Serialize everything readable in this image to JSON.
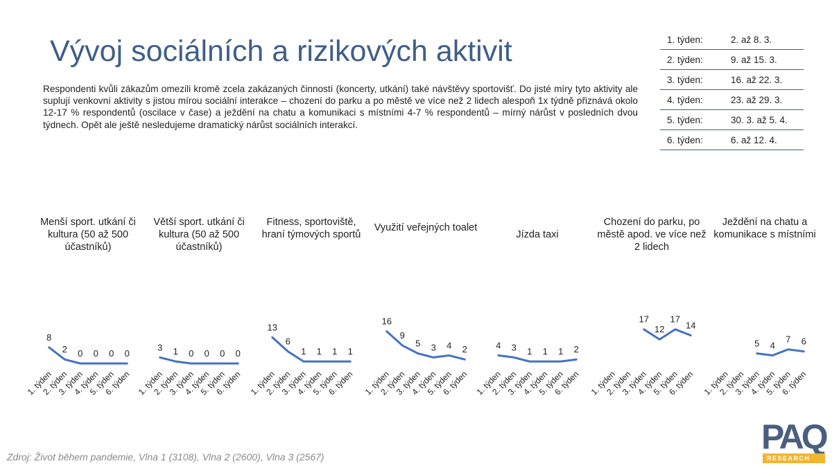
{
  "header": {
    "title": "Vývoj sociálních a rizikových aktivit",
    "description": "Respondenti kvůli zákazům omezili kromě zcela zakázaných činností (koncerty, utkání) také návštěvy sportovišť. Do jisté míry tyto aktivity ale suplují venkovní aktivity s jistou mírou sociální interakce – chození do parku a po městě ve více než 2 lidech alespoň 1x týdně přiznává okolo 12-17 % respondentů (oscilace v čase) a ježdění na chatu a komunikaci s místními 4-7 % respondentů – mírný nárůst v posledních dvou týdnech. Opět ale ještě nesledujeme dramatický nárůst sociálních interakcí."
  },
  "weeks_table": [
    {
      "week": "1. týden:",
      "dates": "2. až 8. 3."
    },
    {
      "week": "2. týden:",
      "dates": "9. až 15. 3."
    },
    {
      "week": "3. týden:",
      "dates": "16. až 22. 3."
    },
    {
      "week": "4. týden:",
      "dates": "23. až 29. 3."
    },
    {
      "week": "5. týden:",
      "dates": "30. 3. až 5. 4."
    },
    {
      "week": "6. týden:",
      "dates": "6. až 12. 4."
    }
  ],
  "source": "Zdroj: Život během pandemie, Vlna 1 (3108), Vlna 2 (2600), Vlna 3 (2567)",
  "logo": {
    "text": "PAQ",
    "subtext": "RESEARCH"
  },
  "colors": {
    "accent": "#3f5f87",
    "line": "#4472c4",
    "logo_bar": "#f2b530"
  },
  "chart_data": [
    {
      "type": "line",
      "title": "Menší sport. utkání či kultura (50 až 500 účastníků)",
      "categories": [
        "1. týden",
        "2. týden",
        "3. týden",
        "4. týden",
        "5. týden",
        "6. týden"
      ],
      "values": [
        8,
        2,
        0,
        0,
        0,
        0
      ]
    },
    {
      "type": "line",
      "title": "Větší sport. utkání či kultura (50 až 500 účastníků)",
      "categories": [
        "1. týden",
        "2. týden",
        "3. týden",
        "4. týden",
        "5. týden",
        "6. týden"
      ],
      "values": [
        3,
        1,
        0,
        0,
        0,
        0
      ]
    },
    {
      "type": "line",
      "title": "Fitness, sportoviště, hraní týmových sportů",
      "categories": [
        "1. týden",
        "2. týden",
        "3. týden",
        "4. týden",
        "5. týden",
        "6. týden"
      ],
      "values": [
        13,
        6,
        1,
        1,
        1,
        1
      ]
    },
    {
      "type": "line",
      "title": "Využití veřejných toalet",
      "categories": [
        "1. týden",
        "2. týden",
        "3. týden",
        "4. týden",
        "5. týden",
        "6. týden"
      ],
      "values": [
        16,
        9,
        5,
        3,
        4,
        2
      ]
    },
    {
      "type": "line",
      "title": "Jízda taxi",
      "categories": [
        "1. týden",
        "2. týden",
        "3. týden",
        "4. týden",
        "5. týden",
        "6. týden"
      ],
      "values": [
        4,
        3,
        1,
        1,
        1,
        2
      ]
    },
    {
      "type": "line",
      "title": "Chození do parku, po městě apod. ve více než 2 lidech",
      "categories": [
        "1. týden",
        "2. týden",
        "3. týden",
        "4. týden",
        "5. týden",
        "6. týden"
      ],
      "values": [
        null,
        null,
        17,
        12,
        17,
        14
      ]
    },
    {
      "type": "line",
      "title": "Ježdění na chatu a komunikace s místními",
      "categories": [
        "1. týden",
        "2. týden",
        "3. týden",
        "4. týden",
        "5. týden",
        "6. týden"
      ],
      "values": [
        null,
        null,
        5,
        4,
        7,
        6
      ]
    }
  ]
}
